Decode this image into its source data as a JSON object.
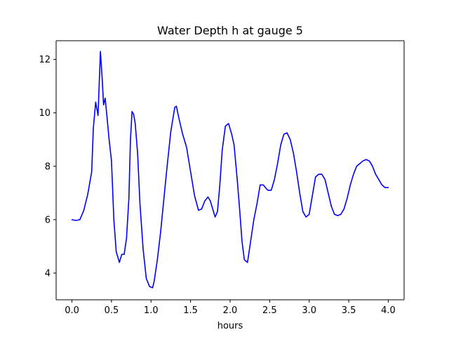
{
  "chart_data": {
    "type": "line",
    "title": "Water Depth h at gauge 5",
    "xlabel": "hours",
    "ylabel": "",
    "xlim": [
      -0.2,
      4.2
    ],
    "ylim": [
      3.0,
      12.7
    ],
    "xticks": [
      0.0,
      0.5,
      1.0,
      1.5,
      2.0,
      2.5,
      3.0,
      3.5,
      4.0
    ],
    "xtick_labels": [
      "0.0",
      "0.5",
      "1.0",
      "1.5",
      "2.0",
      "2.5",
      "3.0",
      "3.5",
      "4.0"
    ],
    "yticks": [
      4,
      6,
      8,
      10,
      12
    ],
    "ytick_labels": [
      "4",
      "6",
      "8",
      "10",
      "12"
    ],
    "grid": false,
    "series": [
      {
        "color": "#0000ff",
        "x": [
          0.0,
          0.05,
          0.1,
          0.15,
          0.2,
          0.25,
          0.27,
          0.3,
          0.33,
          0.36,
          0.38,
          0.4,
          0.42,
          0.44,
          0.47,
          0.5,
          0.53,
          0.56,
          0.6,
          0.63,
          0.66,
          0.69,
          0.72,
          0.74,
          0.76,
          0.78,
          0.8,
          0.83,
          0.86,
          0.9,
          0.94,
          0.98,
          1.02,
          1.04,
          1.08,
          1.12,
          1.16,
          1.2,
          1.25,
          1.3,
          1.32,
          1.36,
          1.4,
          1.45,
          1.5,
          1.55,
          1.6,
          1.64,
          1.68,
          1.72,
          1.75,
          1.78,
          1.81,
          1.84,
          1.87,
          1.9,
          1.94,
          1.98,
          2.02,
          2.05,
          2.09,
          2.12,
          2.15,
          2.18,
          2.22,
          2.26,
          2.3,
          2.34,
          2.38,
          2.42,
          2.46,
          2.48,
          2.52,
          2.56,
          2.6,
          2.64,
          2.68,
          2.72,
          2.76,
          2.8,
          2.84,
          2.88,
          2.92,
          2.96,
          3.0,
          3.04,
          3.08,
          3.12,
          3.16,
          3.2,
          3.24,
          3.28,
          3.32,
          3.36,
          3.4,
          3.44,
          3.48,
          3.52,
          3.56,
          3.6,
          3.64,
          3.68,
          3.72,
          3.76,
          3.8,
          3.84,
          3.88,
          3.92,
          3.96,
          4.0
        ],
        "y": [
          6.0,
          5.97,
          6.0,
          6.35,
          6.95,
          7.8,
          9.4,
          10.4,
          9.9,
          12.3,
          11.4,
          10.3,
          10.55,
          9.95,
          9.0,
          8.2,
          6.0,
          4.8,
          4.4,
          4.7,
          4.7,
          5.3,
          6.8,
          9.0,
          10.05,
          9.95,
          9.6,
          8.5,
          6.6,
          4.9,
          3.8,
          3.5,
          3.45,
          3.7,
          4.5,
          5.5,
          6.7,
          7.9,
          9.3,
          10.2,
          10.25,
          9.7,
          9.2,
          8.7,
          7.8,
          6.9,
          6.35,
          6.4,
          6.7,
          6.85,
          6.7,
          6.4,
          6.1,
          6.3,
          7.3,
          8.6,
          9.5,
          9.6,
          9.2,
          8.8,
          7.5,
          6.4,
          5.2,
          4.5,
          4.4,
          5.2,
          6.0,
          6.6,
          7.3,
          7.3,
          7.15,
          7.1,
          7.1,
          7.5,
          8.1,
          8.8,
          9.2,
          9.25,
          9.0,
          8.5,
          7.8,
          7.0,
          6.3,
          6.1,
          6.2,
          6.9,
          7.6,
          7.7,
          7.7,
          7.5,
          7.0,
          6.5,
          6.2,
          6.15,
          6.2,
          6.4,
          6.8,
          7.3,
          7.7,
          8.0,
          8.1,
          8.2,
          8.25,
          8.2,
          8.0,
          7.7,
          7.5,
          7.3,
          7.2,
          7.2
        ]
      }
    ]
  }
}
